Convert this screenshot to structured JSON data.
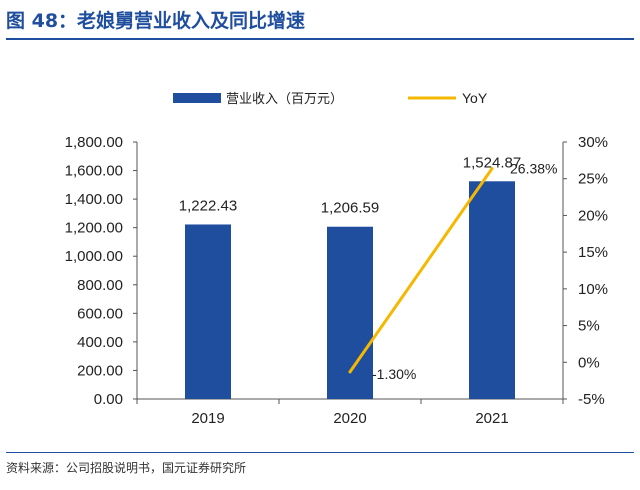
{
  "figure": {
    "title": "图 48：老娘舅营业收入及同比增速",
    "source": "资料来源：公司招股说明书，国元证券研究所"
  },
  "chart_data": {
    "type": "bar",
    "categories": [
      "2019",
      "2020",
      "2021"
    ],
    "series": [
      {
        "name": "营业收入（百万元）",
        "type": "bar",
        "axis": "left",
        "values": [
          1222.43,
          1206.59,
          1524.87
        ],
        "labels": [
          "1,222.43",
          "1,206.59",
          "1,524.87"
        ],
        "color": "#1f4e9f"
      },
      {
        "name": "YoY",
        "type": "line",
        "axis": "right",
        "values": [
          null,
          -1.3,
          26.38
        ],
        "labels": [
          "",
          "-1.30%",
          "26.38%"
        ],
        "color": "#f5b800"
      }
    ],
    "y_left": {
      "ylim": [
        0,
        1800
      ],
      "ticks": [
        "0.00",
        "200.00",
        "400.00",
        "600.00",
        "800.00",
        "1,000.00",
        "1,200.00",
        "1,400.00",
        "1,600.00",
        "1,800.00"
      ]
    },
    "y_right": {
      "ylim": [
        -5,
        30
      ],
      "ticks": [
        "-5%",
        "0%",
        "5%",
        "10%",
        "15%",
        "20%",
        "25%",
        "30%"
      ]
    },
    "legend_position": "top",
    "grid": false
  }
}
